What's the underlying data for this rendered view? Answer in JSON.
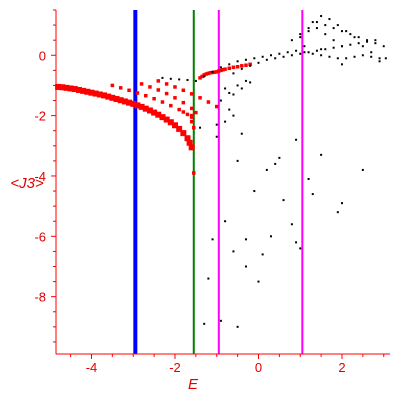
{
  "chart_data": {
    "type": "scatter",
    "title": "",
    "xlabel": "E",
    "ylabel": "<J3>",
    "xlim": [
      -4.85,
      3.15
    ],
    "ylim": [
      -9.9,
      1.5
    ],
    "x_ticks": [
      -4,
      -2,
      0,
      2
    ],
    "x_tick_labels": [
      "-4",
      "-2",
      "0",
      "2"
    ],
    "y_ticks": [
      0,
      -2,
      -4,
      -6,
      -8
    ],
    "y_tick_labels": [
      "0",
      "-2",
      "-4",
      "-6",
      "-8"
    ],
    "grid": false,
    "legend": "none",
    "colors": {
      "axis": "#ff0000",
      "labels": "#e00000",
      "red_points": "#ff0000",
      "black_points": "#000000",
      "blue_line": "#0000ff",
      "green_line": "#008000",
      "magenta_line": "#ff00ff"
    },
    "vertical_lines": [
      {
        "x": -2.95,
        "color": "#0000ff",
        "width": "thick"
      },
      {
        "x": -1.55,
        "color": "#008000",
        "width": "medium"
      },
      {
        "x": -0.95,
        "color": "#ff00ff",
        "width": "medium"
      },
      {
        "x": 1.05,
        "color": "#ff00ff",
        "width": "medium"
      }
    ],
    "series": [
      {
        "marker": "large-red-square",
        "color": "#ff0000",
        "x": [
          -4.8,
          -4.7,
          -4.6,
          -4.5,
          -4.4,
          -4.3,
          -4.2,
          -4.1,
          -4.0,
          -3.9,
          -3.8,
          -3.7,
          -3.6,
          -3.5,
          -3.4,
          -3.3,
          -3.2,
          -3.1,
          -3.0,
          -2.9,
          -2.8,
          -2.7,
          -2.6,
          -2.5,
          -2.4,
          -2.3,
          -2.2,
          -2.1,
          -2.0,
          -1.9,
          -1.8,
          -1.7,
          -1.65,
          -1.6
        ],
        "y": [
          -1.05,
          -1.06,
          -1.08,
          -1.1,
          -1.12,
          -1.15,
          -1.18,
          -1.21,
          -1.24,
          -1.27,
          -1.3,
          -1.33,
          -1.37,
          -1.41,
          -1.45,
          -1.49,
          -1.53,
          -1.57,
          -1.61,
          -1.66,
          -1.71,
          -1.77,
          -1.83,
          -1.9,
          -1.97,
          -2.05,
          -2.13,
          -2.22,
          -2.32,
          -2.44,
          -2.58,
          -2.75,
          -2.9,
          -3.05
        ]
      },
      {
        "marker": "small-red-square",
        "color": "#ff0000",
        "x": [
          -3.5,
          -3.3,
          -3.1,
          -2.9,
          -2.7,
          -2.5,
          -2.3,
          -2.1,
          -1.9,
          -1.8,
          -1.7,
          -1.6
        ],
        "y": [
          -1.0,
          -1.08,
          -1.16,
          -1.25,
          -1.34,
          -1.44,
          -1.55,
          -1.67,
          -1.8,
          -1.88,
          -1.96,
          -2.05
        ]
      },
      {
        "marker": "small-red-square",
        "color": "#ff0000",
        "x": [
          -2.8,
          -2.6,
          -2.4,
          -2.2,
          -2.0,
          -1.8,
          -1.6,
          -1.5
        ],
        "y": [
          -0.95,
          -1.05,
          -1.15,
          -1.27,
          -1.41,
          -1.57,
          -1.76,
          -1.9
        ]
      },
      {
        "marker": "small-red-square",
        "color": "#ff0000",
        "x": [
          -2.4,
          -2.2,
          -2.0,
          -1.8,
          -1.6,
          -1.4,
          -1.2,
          -1.0
        ],
        "y": [
          -0.85,
          -0.95,
          -1.05,
          -1.16,
          -1.28,
          -1.41,
          -1.55,
          -1.7
        ]
      },
      {
        "marker": "small-red-square",
        "color": "#ff0000",
        "x": [
          -1.4,
          -1.35,
          -1.3,
          -1.25,
          -1.2,
          -1.15,
          -1.1,
          -1.05,
          -1.0,
          -0.95,
          -0.9,
          -0.85,
          -0.8,
          -0.7,
          -0.6,
          -0.5,
          -0.4,
          -0.3,
          -0.2,
          -1.6,
          -1.6,
          -1.55,
          -1.55
        ],
        "y": [
          -0.75,
          -0.7,
          -0.65,
          -0.62,
          -0.6,
          -0.58,
          -0.57,
          -0.56,
          -0.55,
          -0.52,
          -0.5,
          -0.48,
          -0.46,
          -0.43,
          -0.4,
          -0.38,
          -0.35,
          -0.33,
          -0.3,
          -2.0,
          -2.2,
          -2.4,
          -3.9
        ]
      },
      {
        "marker": "black-dot",
        "color": "#000000",
        "x": [
          -2.3,
          -2.1,
          -1.9,
          -1.7,
          -1.5,
          -1.3,
          -1.1,
          -0.9,
          -0.7,
          -0.5,
          -0.3,
          -0.1,
          0.1,
          0.3,
          0.5,
          0.7,
          0.9,
          1.1,
          1.3,
          1.5,
          1.7,
          1.9,
          2.1,
          2.3,
          2.5,
          2.7,
          2.9,
          3.05,
          -0.6,
          -0.4,
          -0.2,
          0.0,
          0.2,
          0.4,
          0.6,
          0.8,
          1.0,
          1.2,
          1.4,
          1.6,
          1.8,
          2.0,
          2.2,
          2.4,
          2.6,
          2.8,
          3.0,
          0.8,
          1.0,
          1.2,
          1.4,
          1.6,
          1.8,
          2.0,
          2.2,
          2.4,
          2.6,
          2.8,
          1.1,
          1.3,
          1.5,
          1.7,
          1.9,
          2.1,
          2.3,
          2.5,
          2.7,
          2.9,
          1.2,
          1.4,
          1.6,
          1.8,
          2.0,
          1.0,
          1.5,
          2.0,
          -0.8,
          -0.6,
          -0.4,
          -0.2,
          -0.9,
          -0.7,
          -0.5,
          -0.3
        ],
        "y": [
          -0.75,
          -0.78,
          -0.8,
          -0.82,
          -0.85,
          -0.7,
          -0.55,
          -0.4,
          -0.3,
          -0.2,
          -0.15,
          -0.1,
          -0.05,
          0.0,
          0.05,
          0.1,
          0.15,
          0.1,
          0.05,
          0.0,
          -0.05,
          -0.1,
          -0.1,
          -0.05,
          0.0,
          -0.05,
          -0.1,
          -0.1,
          -0.6,
          -0.45,
          -0.35,
          -0.25,
          -0.15,
          -0.1,
          -0.05,
          0.0,
          0.05,
          0.1,
          0.15,
          0.2,
          0.25,
          0.3,
          0.35,
          0.4,
          0.45,
          0.5,
          0.3,
          0.5,
          0.7,
          0.8,
          0.9,
          1.0,
          0.9,
          0.8,
          0.7,
          0.6,
          0.5,
          0.4,
          0.3,
          1.1,
          1.3,
          1.2,
          1.0,
          0.8,
          0.6,
          0.3,
          0.1,
          -0.2,
          0.9,
          1.1,
          0.7,
          0.5,
          0.3,
          0.6,
          0.2,
          -0.3,
          -1.1,
          -1.3,
          -1.1,
          -0.9,
          -1.5,
          -1.25,
          -1.0,
          -0.85
        ]
      },
      {
        "marker": "black-dot",
        "color": "#000000",
        "x": [
          -0.5,
          0.5,
          1.5,
          0.2,
          1.2,
          2.5,
          -0.8,
          -0.3,
          0.3,
          0.8,
          1.3,
          2.0,
          -1.1,
          -0.6,
          0.1,
          0.9,
          -1.2,
          0.0,
          -0.9,
          -1.3,
          -0.5,
          -0.3,
          1.0,
          -0.1,
          0.6,
          1.9,
          -1.0,
          -0.4,
          -1.4,
          -0.8,
          0.4,
          0.9,
          -0.6,
          -1.0,
          -0.7
        ],
        "y": [
          -3.5,
          -3.4,
          -3.3,
          -3.8,
          -4.1,
          -3.8,
          -5.5,
          -6.1,
          -6.0,
          -5.6,
          -4.6,
          -4.9,
          -6.1,
          -6.5,
          -6.6,
          -6.2,
          -7.4,
          -7.5,
          -8.8,
          -8.9,
          -9.0,
          -7.0,
          -6.4,
          -4.5,
          -4.8,
          -5.2,
          -2.7,
          -2.6,
          -2.4,
          -2.2,
          -3.6,
          -2.8,
          -2.0,
          -2.3,
          -1.8
        ]
      }
    ]
  }
}
